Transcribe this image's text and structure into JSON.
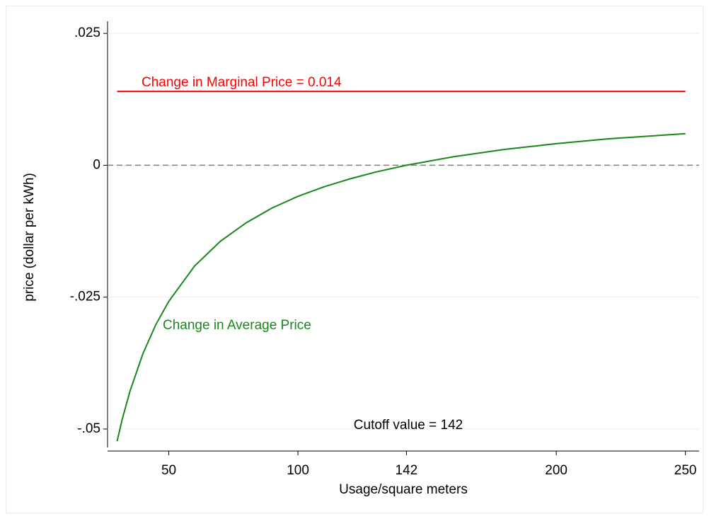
{
  "chart_data": {
    "type": "line",
    "xlabel": "Usage/square meters",
    "ylabel": "price (dollar per kWh)",
    "series": [
      {
        "name": "Change in Marginal Price = 0.014",
        "color": "#ff0000",
        "x": [
          30,
          250
        ],
        "values": [
          0.014,
          0.014
        ]
      },
      {
        "name": "Change in Average Price",
        "color": "#1a871a",
        "x": [
          30,
          32,
          35,
          40,
          45,
          50,
          60,
          70,
          80,
          90,
          100,
          110,
          120,
          130,
          142,
          160,
          180,
          200,
          220,
          250
        ],
        "values": [
          -0.0523,
          -0.0481,
          -0.0428,
          -0.0357,
          -0.0302,
          -0.0258,
          -0.0191,
          -0.0144,
          -0.0109,
          -0.0081,
          -0.0059,
          -0.0041,
          -0.0026,
          -0.0013,
          0,
          0.0016,
          0.003,
          0.0041,
          0.005,
          0.006
        ]
      }
    ],
    "reference_line": {
      "value": 0,
      "color": "#808080"
    },
    "annotations": [
      "Cutoff value = 142"
    ],
    "xlim": [
      26.3,
      255.3
    ],
    "ylim": [
      -0.0535,
      0.0273
    ],
    "xticks": [
      50,
      100,
      142,
      200,
      250
    ],
    "yticks": [
      {
        "value": 0.025,
        "label": ".025"
      },
      0,
      {
        "value": -0.025,
        "label": "-.025"
      },
      {
        "value": -0.05,
        "label": "-.05"
      }
    ],
    "grid": true
  }
}
